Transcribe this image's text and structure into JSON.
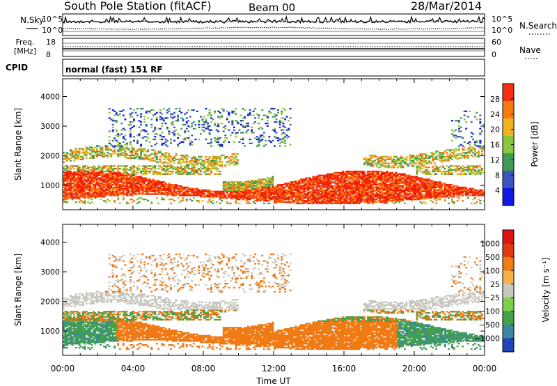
{
  "header": {
    "station": "South Pole Station (fitACF)",
    "beam": "Beam 00",
    "date": "28/Mar/2014"
  },
  "info_panels": {
    "nsky_label": "N.Sky",
    "nsearch_label": "N.Search",
    "noise_ticks": [
      "10^5",
      "10^0"
    ],
    "freq_label_1": "Freq.",
    "freq_label_2": "[MHz]",
    "freq_ticks": [
      "18",
      "8"
    ],
    "nave_label": "Nave",
    "nave_ticks": [
      "60",
      "0"
    ],
    "cpid_label": "CPID",
    "cpid_value": "normal (fast) 151 RF"
  },
  "time_axis": {
    "label": "Time UT",
    "ticks": [
      "00:00",
      "04:00",
      "08:00",
      "12:00",
      "16:00",
      "20:00",
      "00:00"
    ],
    "hours": [
      0,
      4,
      8,
      12,
      16,
      20,
      24
    ]
  },
  "chart_data": [
    {
      "type": "heatmap",
      "quantity": "power",
      "ylabel": "Slant Range [km]",
      "ylim": [
        180,
        4600
      ],
      "yticks": [
        1000,
        2000,
        3000,
        4000
      ],
      "xlim_hours": [
        0,
        24
      ],
      "colorbar_label": "Power [dB]",
      "colorbar_ticks": [
        "28",
        "24",
        "20",
        "16",
        "12",
        "8",
        "4"
      ],
      "colorbar_colors": [
        "#1418e6",
        "#3a55c0",
        "#3f9a55",
        "#8cc63c",
        "#f2b31e",
        "#fa7a12",
        "#f43010"
      ],
      "summary": {
        "main_band_km": [
          500,
          1400
        ],
        "upper_band_km": [
          1800,
          2200
        ],
        "sparse_echoes_km": [
          2300,
          3600
        ]
      }
    },
    {
      "type": "heatmap",
      "quantity": "velocity",
      "ylabel": "Slant Range [km]",
      "ylim": [
        180,
        4600
      ],
      "yticks": [
        1000,
        2000,
        3000,
        4000
      ],
      "xlim_hours": [
        0,
        24
      ],
      "colorbar_label": "Velocity [m s⁻¹]",
      "colorbar_ticks": [
        "1000",
        "500",
        "100",
        "25",
        "−25",
        "−100",
        "−500",
        "−1000"
      ],
      "colorbar_colors": [
        "#1e44b8",
        "#3b87a0",
        "#45a04a",
        "#7cd04a",
        "#c8c8c0",
        "#f6b24a",
        "#f07a14",
        "#e23a10",
        "#dc1410"
      ]
    }
  ],
  "colors": {
    "power_scale": [
      "#1418e6",
      "#3a55c0",
      "#3f9a55",
      "#8cc63c",
      "#f2b31e",
      "#fa7a12",
      "#f43010",
      "#ee1a0a"
    ],
    "velocity_ground": "#c8c8c0",
    "velocity_neg": "#f07a14",
    "velocity_pos": "#45a04a"
  }
}
